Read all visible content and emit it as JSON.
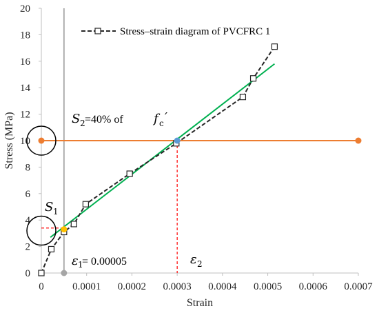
{
  "chart_data": {
    "type": "line",
    "title": "",
    "xlabel": "Strain",
    "ylabel": "Stress (MPa)",
    "xlim": [
      0,
      0.0007
    ],
    "ylim": [
      0,
      20
    ],
    "x_ticks": [
      0,
      0.0001,
      0.0002,
      0.0003,
      0.0004,
      0.0005,
      0.0006,
      0.0007
    ],
    "x_tick_labels": [
      "0",
      "0.0001",
      "0.0002",
      "0.0003",
      "0.0004",
      "0.0005",
      "0.0006",
      "0.0007"
    ],
    "y_ticks": [
      0,
      2,
      4,
      6,
      8,
      10,
      12,
      14,
      16,
      18,
      20
    ],
    "y_tick_labels": [
      "0",
      "2",
      "4",
      "6",
      "8",
      "10",
      "12",
      "14",
      "16",
      "18",
      "20"
    ],
    "grid": false,
    "legend_position": "top-center",
    "series": [
      {
        "name": "Stress–strain diagram of PVCFRC 1",
        "style": "dashed-with-square-markers",
        "color": "#262626",
        "x": [
          0.0,
          2.2e-05,
          5e-05,
          7.2e-05,
          9.8e-05,
          0.000195,
          0.000298,
          0.000445,
          0.000468,
          0.000515
        ],
        "y": [
          0.0,
          1.8,
          3.1,
          3.7,
          5.2,
          7.5,
          9.8,
          13.3,
          14.7,
          17.1
        ]
      },
      {
        "style": "solid",
        "color": "#00b050",
        "x": [
          2e-05,
          0.000515
        ],
        "y": [
          2.7,
          15.8
        ]
      },
      {
        "style": "solid",
        "color": "#ed7d31",
        "x": [
          0.0,
          0.0007
        ],
        "y": [
          10.0,
          10.0
        ]
      }
    ],
    "reference_lines": [
      {
        "orientation": "vertical",
        "x": 5e-05,
        "color": "#a6a6a6",
        "style": "solid"
      },
      {
        "orientation": "vertical",
        "x": 0.0003,
        "y_to": 10,
        "color": "#ff0000",
        "style": "dashed"
      },
      {
        "orientation": "horizontal",
        "y": 3.4,
        "x_to": 5e-05,
        "color": "#ff0000",
        "style": "dashed"
      }
    ],
    "highlight_points": [
      {
        "x": 0.0003,
        "y": 10.0,
        "color": "#5b9bd5"
      },
      {
        "x": 5e-05,
        "y": 3.3,
        "color": "#ffc000"
      },
      {
        "x": 5e-05,
        "y": 0.0,
        "color": "#a6a6a6"
      }
    ],
    "circles": [
      {
        "x": 0.0,
        "y": 10.0
      },
      {
        "x": 0.0,
        "y": 3.2
      }
    ],
    "annotations": {
      "s2_label": "=40% of",
      "s1_label": "S",
      "eps1_value": "= 0.00005",
      "eps2_label": "ε"
    }
  }
}
